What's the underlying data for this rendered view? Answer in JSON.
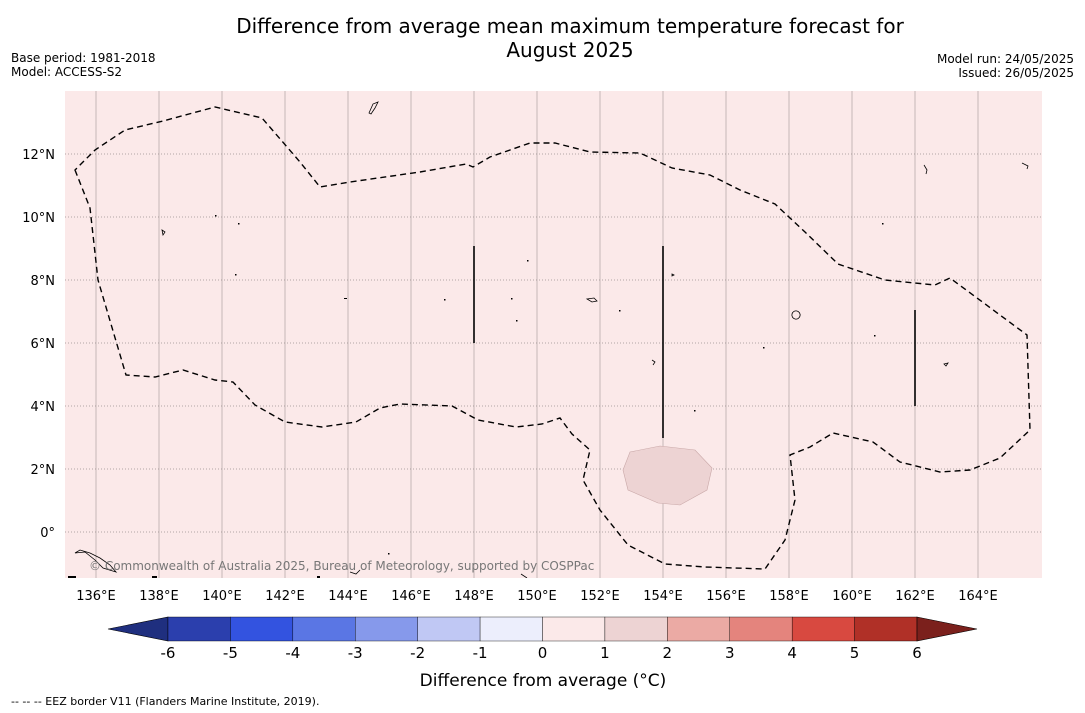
{
  "title": {
    "line1": "Difference from average mean maximum temperature forecast for",
    "line2": "August 2025"
  },
  "meta_left": [
    "Base period: 1981-2018",
    "Model: ACCESS-S2"
  ],
  "meta_right": [
    "Model run: 24/05/2025",
    "Issued: 26/05/2025"
  ],
  "map": {
    "lon_range": [
      135,
      166
    ],
    "lat_range": [
      -1.5,
      14
    ],
    "lon_ticks": [
      "136°E",
      "138°E",
      "140°E",
      "142°E",
      "144°E",
      "146°E",
      "148°E",
      "150°E",
      "152°E",
      "154°E",
      "156°E",
      "158°E",
      "160°E",
      "162°E",
      "164°E"
    ],
    "lat_ticks": [
      "12°N",
      "10°N",
      "8°N",
      "6°N",
      "4°N",
      "2°N",
      "0°"
    ],
    "background_category": "0 to 1",
    "background_color": "#fbe9e9",
    "grid": true,
    "features": [
      {
        "name": "warm-anomaly-patch",
        "category": "1 to 2",
        "color": "#edd3d3"
      }
    ],
    "copyright": "© Commonwealth of Australia 2025, Bureau of Meteorology, supported by COSPPac"
  },
  "colorbar": {
    "label": "Difference from average (°C)",
    "tick_labels": [
      "-6",
      "-5",
      "-4",
      "-3",
      "-2",
      "-1",
      "0",
      "1",
      "2",
      "3",
      "4",
      "5",
      "6"
    ],
    "colors": [
      "#1f2f7f",
      "#2b3fad",
      "#3353e0",
      "#5a76e4",
      "#8699eb",
      "#c0c8f4",
      "#eceefc",
      "#fbe9e9",
      "#edd3d3",
      "#ebaaa4",
      "#e4847d",
      "#d84940",
      "#b03027",
      "#7b201c"
    ]
  },
  "footnote": "--  --  -- EEZ border V11 (Flanders Marine Institute, 2019)."
}
